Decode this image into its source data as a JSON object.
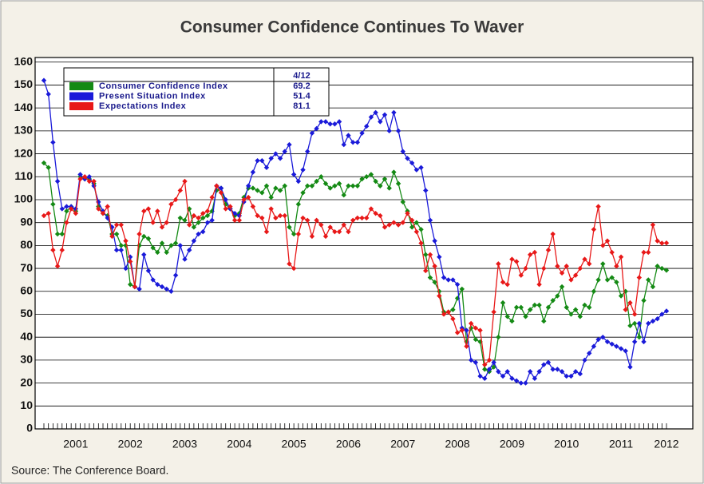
{
  "chart_data": {
    "type": "line",
    "title": "Consumer Confidence Continues To Waver",
    "source": "Source:  The Conference Board.",
    "legend_header": "4/12",
    "grid": true,
    "categories": [
      null,
      null,
      null,
      null,
      null,
      null,
      null,
      "2001",
      null,
      null,
      null,
      null,
      null,
      null,
      null,
      null,
      null,
      null,
      null,
      "2002",
      null,
      null,
      null,
      null,
      null,
      null,
      null,
      null,
      null,
      null,
      null,
      "2003",
      null,
      null,
      null,
      null,
      null,
      null,
      null,
      null,
      null,
      null,
      null,
      "2004",
      null,
      null,
      null,
      null,
      null,
      null,
      null,
      null,
      null,
      null,
      null,
      "2005",
      null,
      null,
      null,
      null,
      null,
      null,
      null,
      null,
      null,
      null,
      null,
      "2006",
      null,
      null,
      null,
      null,
      null,
      null,
      null,
      null,
      null,
      null,
      null,
      "2007",
      null,
      null,
      null,
      null,
      null,
      null,
      null,
      null,
      null,
      null,
      null,
      "2008",
      null,
      null,
      null,
      null,
      null,
      null,
      null,
      null,
      null,
      null,
      null,
      "2009",
      null,
      null,
      null,
      null,
      null,
      null,
      null,
      null,
      null,
      null,
      null,
      "2010",
      null,
      null,
      null,
      null,
      null,
      null,
      null,
      null,
      null,
      null,
      null,
      "2011",
      null,
      null,
      null,
      null,
      null,
      null,
      null,
      null,
      null,
      "2012"
    ],
    "ylim": [
      0,
      162
    ],
    "yticks": [
      0,
      10,
      20,
      30,
      40,
      50,
      60,
      70,
      80,
      90,
      100,
      110,
      120,
      130,
      140,
      150,
      160
    ],
    "series": [
      {
        "name": "Consumer Confidence Index",
        "color": "#148a14",
        "value_label": "69.2",
        "values": [
          116,
          114,
          98,
          85,
          85,
          95,
          97,
          95,
          110,
          109,
          109,
          107,
          97,
          94,
          93,
          85,
          85,
          80,
          80,
          63,
          62,
          80,
          84,
          83,
          79,
          77,
          81,
          77,
          80,
          81,
          92,
          91,
          96,
          88,
          90,
          92,
          93,
          95,
          104,
          105,
          98,
          96,
          93,
          94,
          101,
          105,
          105,
          104,
          103,
          106,
          101,
          105,
          104,
          106,
          88,
          85,
          98,
          103,
          106,
          106,
          108,
          110,
          107,
          105,
          106,
          107,
          102,
          106,
          106,
          106,
          109,
          110,
          111,
          108,
          106,
          109,
          105,
          112,
          107,
          99,
          95,
          88,
          90,
          87,
          76,
          66,
          64,
          60,
          51,
          51,
          52,
          57,
          61,
          38,
          44,
          39,
          38,
          26,
          25,
          27,
          40,
          55,
          49,
          47,
          53,
          53,
          49,
          52,
          54,
          54,
          47,
          53,
          56,
          58,
          62,
          53,
          50,
          52,
          49,
          54,
          53,
          60,
          65,
          72,
          65,
          66,
          64,
          58,
          60,
          45,
          46,
          40,
          56,
          65,
          62,
          71,
          70,
          69.2
        ]
      },
      {
        "name": "Present Situation Index",
        "color": "#1a1ad9",
        "value_label": "51.4",
        "values": [
          152,
          146,
          125,
          108,
          96,
          97,
          97,
          96,
          111,
          109,
          110,
          106,
          99,
          95,
          92,
          88,
          78,
          78,
          70,
          75,
          62,
          61,
          76,
          69,
          65,
          63,
          62,
          61,
          60,
          67,
          80,
          74,
          78,
          82,
          85,
          86,
          90,
          91,
          106,
          105,
          100,
          96,
          94,
          93,
          99,
          106,
          112,
          117,
          117,
          114,
          118,
          120,
          118,
          121,
          124,
          111,
          108,
          113,
          121,
          129,
          131,
          134,
          134,
          133,
          133,
          134,
          124,
          128,
          125,
          125,
          129,
          132,
          136,
          138,
          134,
          137,
          130,
          138,
          130,
          121,
          118,
          116,
          113,
          114,
          104,
          91,
          82,
          75,
          66,
          65,
          65,
          63,
          44,
          43,
          30,
          29,
          23,
          22,
          26,
          29,
          25,
          23,
          25,
          22,
          21,
          20,
          20,
          25,
          22,
          25,
          28,
          29,
          26,
          26,
          25,
          23,
          23,
          25,
          24,
          30,
          33,
          36,
          39,
          40,
          38,
          37,
          36,
          35,
          34,
          27,
          38,
          46,
          38,
          46,
          47,
          48,
          50,
          51.4
        ]
      },
      {
        "name": "Expectations Index",
        "color": "#e81818",
        "value_label": "81.1",
        "values": [
          93,
          94,
          78,
          71,
          78,
          90,
          96,
          94,
          109,
          110,
          108,
          108,
          96,
          94,
          97,
          84,
          89,
          89,
          82,
          73,
          62,
          85,
          95,
          96,
          90,
          95,
          88,
          90,
          98,
          100,
          104,
          108,
          89,
          93,
          92,
          94,
          95,
          101,
          106,
          103,
          96,
          97,
          91,
          91,
          100,
          101,
          97,
          93,
          92,
          86,
          96,
          92,
          93,
          93,
          72,
          70,
          85,
          92,
          91,
          84,
          91,
          89,
          84,
          88,
          86,
          86,
          89,
          86,
          91,
          92,
          92,
          92,
          96,
          94,
          93,
          88,
          89,
          90,
          89,
          90,
          94,
          91,
          86,
          81,
          69,
          76,
          71,
          58,
          50,
          51,
          48,
          42,
          43,
          36,
          46,
          44,
          43,
          28,
          30,
          51,
          72,
          64,
          63,
          74,
          73,
          67,
          70,
          76,
          77,
          63,
          70,
          78,
          85,
          71,
          68,
          71,
          65,
          67,
          70,
          74,
          72,
          87,
          97,
          80,
          82,
          77,
          71,
          75,
          52,
          55,
          50,
          66,
          77,
          77,
          89,
          82,
          81,
          81.1
        ]
      }
    ]
  }
}
